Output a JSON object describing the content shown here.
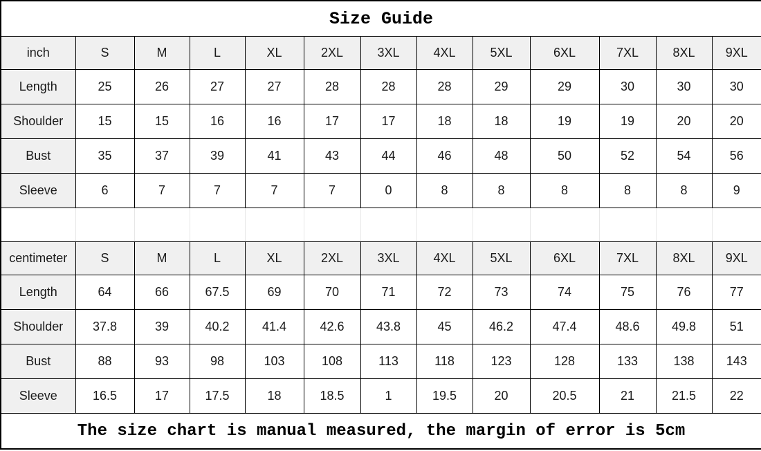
{
  "title": "Size Guide",
  "footer": "The size chart is manual measured, the margin of error is 5cm",
  "colors": {
    "border": "#000000",
    "header_background": "#f0f0f0",
    "spacer_gridline": "#e7e7e7",
    "text": "#1b1b1b"
  },
  "sizes": [
    "S",
    "M",
    "L",
    "XL",
    "2XL",
    "3XL",
    "4XL",
    "5XL",
    "6XL",
    "7XL",
    "8XL",
    "9XL"
  ],
  "sections": [
    {
      "unit": "inch",
      "rows": [
        {
          "label": "Length",
          "values": [
            25,
            26,
            27,
            27,
            28,
            28,
            28,
            29,
            29,
            30,
            30,
            30
          ]
        },
        {
          "label": "Shoulder",
          "values": [
            15,
            15,
            16,
            16,
            17,
            17,
            18,
            18,
            19,
            19,
            20,
            20
          ]
        },
        {
          "label": "Bust",
          "values": [
            35,
            37,
            39,
            41,
            43,
            44,
            46,
            48,
            50,
            52,
            54,
            56
          ]
        },
        {
          "label": "Sleeve",
          "values": [
            6,
            7,
            7,
            7,
            7,
            0,
            8,
            8,
            8,
            8,
            8,
            9
          ]
        }
      ]
    },
    {
      "unit": "centimeter",
      "rows": [
        {
          "label": "Length",
          "values": [
            64,
            66,
            67.5,
            69,
            70,
            71,
            72,
            73,
            74,
            75,
            76,
            77
          ]
        },
        {
          "label": "Shoulder",
          "values": [
            37.8,
            39,
            40.2,
            41.4,
            42.6,
            43.8,
            45,
            46.2,
            47.4,
            48.6,
            49.8,
            51
          ]
        },
        {
          "label": "Bust",
          "values": [
            88,
            93,
            98,
            103,
            108,
            113,
            118,
            123,
            128,
            133,
            138,
            143
          ]
        },
        {
          "label": "Sleeve",
          "values": [
            16.5,
            17,
            17.5,
            18,
            18.5,
            1,
            19.5,
            20,
            20.5,
            21,
            21.5,
            22
          ]
        }
      ]
    }
  ],
  "chart_data": [
    {
      "type": "table",
      "title": "Size Guide (inch)",
      "columns": [
        "inch",
        "S",
        "M",
        "L",
        "XL",
        "2XL",
        "3XL",
        "4XL",
        "5XL",
        "6XL",
        "7XL",
        "8XL",
        "9XL"
      ],
      "rows": [
        [
          "Length",
          25,
          26,
          27,
          27,
          28,
          28,
          28,
          29,
          29,
          30,
          30,
          30
        ],
        [
          "Shoulder",
          15,
          15,
          16,
          16,
          17,
          17,
          18,
          18,
          19,
          19,
          20,
          20
        ],
        [
          "Bust",
          35,
          37,
          39,
          41,
          43,
          44,
          46,
          48,
          50,
          52,
          54,
          56
        ],
        [
          "Sleeve",
          6,
          7,
          7,
          7,
          7,
          0,
          8,
          8,
          8,
          8,
          8,
          9
        ]
      ]
    },
    {
      "type": "table",
      "title": "Size Guide (centimeter)",
      "columns": [
        "centimeter",
        "S",
        "M",
        "L",
        "XL",
        "2XL",
        "3XL",
        "4XL",
        "5XL",
        "6XL",
        "7XL",
        "8XL",
        "9XL"
      ],
      "rows": [
        [
          "Length",
          64,
          66,
          67.5,
          69,
          70,
          71,
          72,
          73,
          74,
          75,
          76,
          77
        ],
        [
          "Shoulder",
          37.8,
          39,
          40.2,
          41.4,
          42.6,
          43.8,
          45,
          46.2,
          47.4,
          48.6,
          49.8,
          51
        ],
        [
          "Bust",
          88,
          93,
          98,
          103,
          108,
          113,
          118,
          123,
          128,
          133,
          138,
          143
        ],
        [
          "Sleeve",
          16.5,
          17,
          17.5,
          18,
          18.5,
          1,
          19.5,
          20,
          20.5,
          21,
          21.5,
          22
        ]
      ],
      "footnote": "The size chart is manual measured, the margin of error is 5cm"
    }
  ]
}
